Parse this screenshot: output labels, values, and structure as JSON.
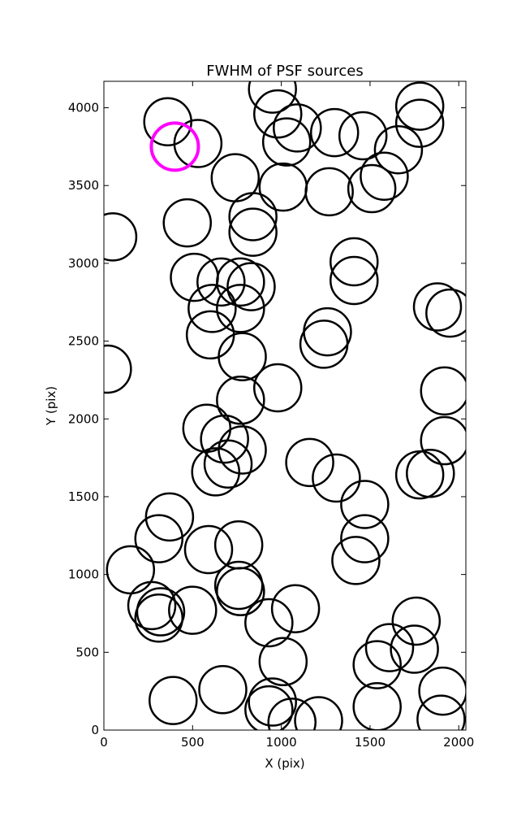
{
  "chart_data": {
    "type": "scatter",
    "title": "FWHM of PSF sources",
    "x_label": "X (pix)",
    "y_label": "Y (pix)",
    "xlim": [
      0,
      2040
    ],
    "ylim": [
      0,
      4170
    ],
    "xticks": [
      0,
      500,
      1000,
      1500,
      2000
    ],
    "yticks": [
      0,
      500,
      1000,
      1500,
      2000,
      2500,
      3000,
      3500,
      4000
    ],
    "marker": "open-circle",
    "series": [
      {
        "color": "#000000",
        "x": [
          360,
          530,
          950,
          980,
          1090,
          1030,
          1300,
          1460,
          1780,
          1780,
          1660,
          1580,
          1510,
          1270,
          1010,
          740,
          470,
          840,
          840,
          50,
          510,
          660,
          770,
          830,
          610,
          770,
          1410,
          1410,
          1880,
          1950,
          1260,
          1240,
          600,
          780,
          20,
          980,
          770,
          1920,
          1920,
          580,
          680,
          780,
          700,
          630,
          1160,
          1310,
          1780,
          1840,
          1470,
          1470,
          1420,
          370,
          310,
          150,
          590,
          760,
          760,
          770,
          270,
          320,
          310,
          500,
          930,
          1080,
          1010,
          1760,
          1610,
          1750,
          1540,
          1910,
          1900,
          1540,
          1210,
          1060,
          950,
          930,
          670,
          390
        ],
        "values": [
          3910,
          3770,
          4120,
          3960,
          3870,
          3780,
          3840,
          3820,
          4010,
          3900,
          3730,
          3560,
          3480,
          3460,
          3490,
          3550,
          3260,
          3300,
          3200,
          3170,
          2910,
          2880,
          2880,
          2850,
          2710,
          2710,
          3010,
          2890,
          2720,
          2680,
          2560,
          2480,
          2540,
          2400,
          2320,
          2200,
          2120,
          2180,
          1860,
          1940,
          1870,
          1800,
          1710,
          1660,
          1720,
          1620,
          1640,
          1650,
          1450,
          1230,
          1090,
          1370,
          1230,
          1030,
          1160,
          1190,
          930,
          890,
          800,
          760,
          720,
          770,
          690,
          780,
          440,
          700,
          530,
          520,
          420,
          250,
          70,
          150,
          60,
          50,
          180,
          130,
          260,
          190
        ]
      },
      {
        "color": "#ff00ff",
        "x": [
          400
        ],
        "values": [
          3750
        ]
      }
    ]
  }
}
